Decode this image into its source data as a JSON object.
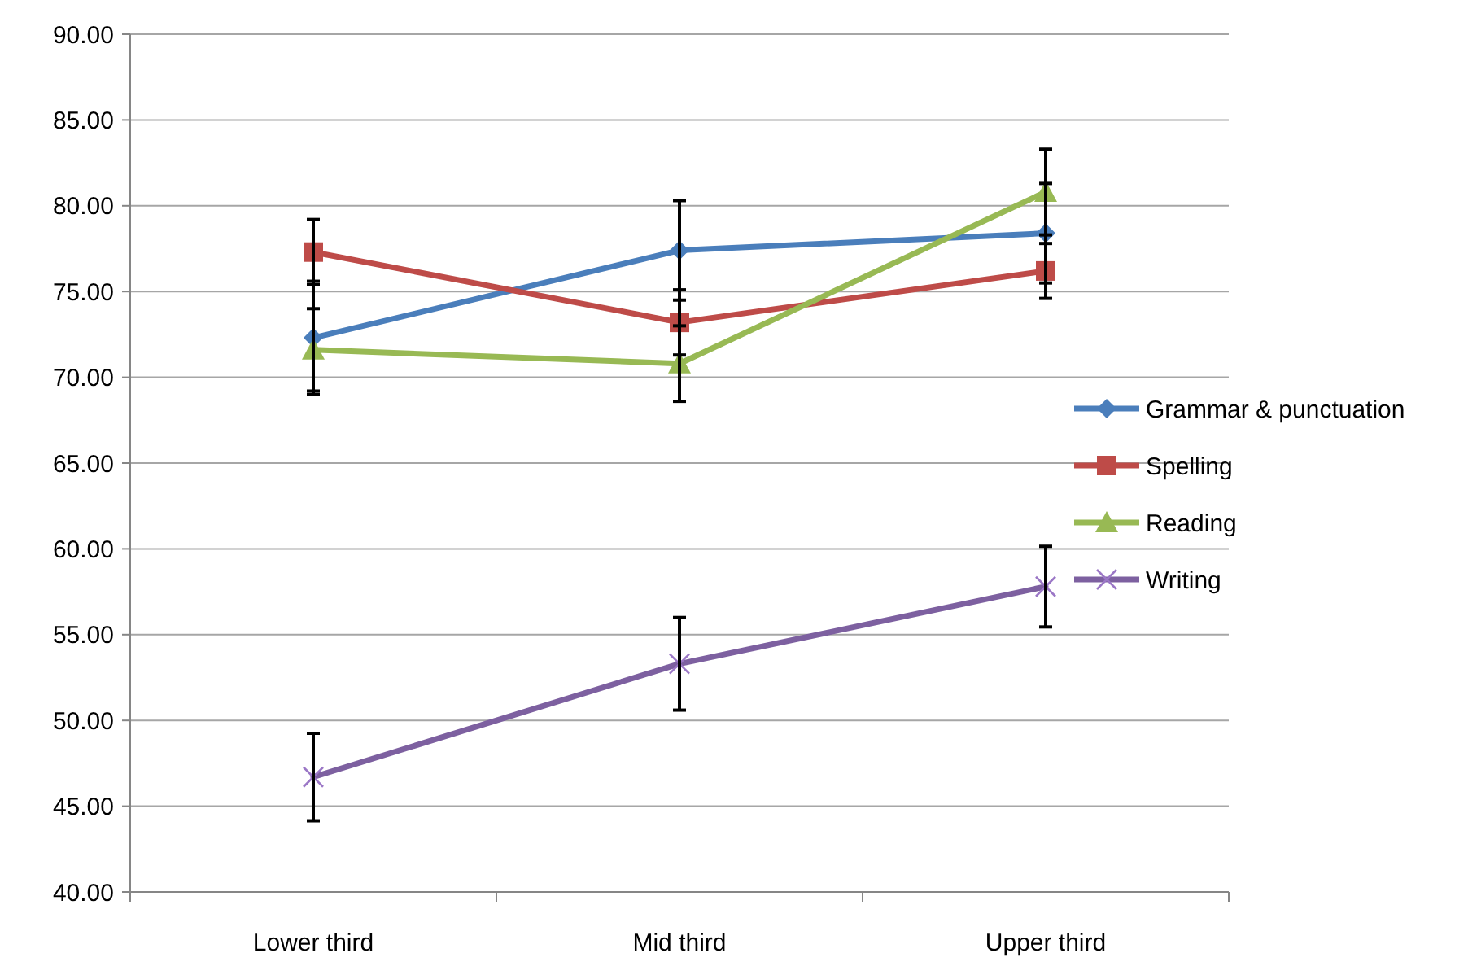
{
  "chart_data": {
    "type": "line",
    "categories": [
      "Lower third",
      "Mid third",
      "Upper third"
    ],
    "ylim": [
      40,
      90
    ],
    "yticks": [
      {
        "value": 40,
        "label": "40.00"
      },
      {
        "value": 45,
        "label": "45.00"
      },
      {
        "value": 50,
        "label": "50.00"
      },
      {
        "value": 55,
        "label": "55.00"
      },
      {
        "value": 60,
        "label": "60.00"
      },
      {
        "value": 65,
        "label": "65.00"
      },
      {
        "value": 70,
        "label": "70.00"
      },
      {
        "value": 75,
        "label": "75.00"
      },
      {
        "value": 80,
        "label": "80.00"
      },
      {
        "value": 85,
        "label": "85.00"
      },
      {
        "value": 90,
        "label": "90.00"
      }
    ],
    "grid": "y",
    "legend": "right",
    "series": [
      {
        "name": "Grammar & punctuation",
        "color": "#4a7ebb",
        "marker": "diamond",
        "values": [
          72.3,
          77.4,
          78.4
        ],
        "errors": [
          3.3,
          2.9,
          2.9
        ]
      },
      {
        "name": "Spelling",
        "color": "#be4b48",
        "marker": "square",
        "values": [
          77.3,
          73.2,
          76.2
        ],
        "errors": [
          1.9,
          1.9,
          1.6
        ]
      },
      {
        "name": "Reading",
        "color": "#98b954",
        "marker": "triangle",
        "values": [
          71.6,
          70.8,
          80.8
        ],
        "errors": [
          2.4,
          2.2,
          2.5
        ]
      },
      {
        "name": "Writing",
        "color": "#7d60a0",
        "marker": "cross",
        "values": [
          46.7,
          53.3,
          57.8
        ],
        "errors": [
          2.55,
          2.7,
          2.35
        ]
      }
    ]
  }
}
